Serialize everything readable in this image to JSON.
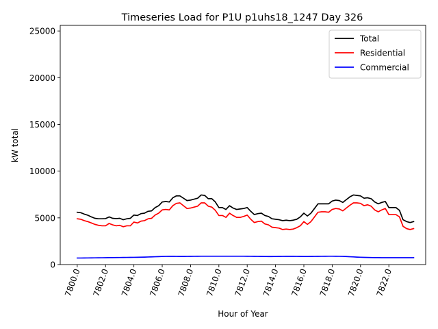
{
  "chart_data": {
    "type": "line",
    "title": "Timeseries Load for P1U p1uhs18_1247  Day 326",
    "xlabel": "Hour of Year",
    "ylabel": "kW total",
    "xlim": [
      7798.8,
      7824.6
    ],
    "ylim": [
      0,
      25600
    ],
    "xticks": [
      7800,
      7802,
      7804,
      7806,
      7808,
      7810,
      7812,
      7814,
      7816,
      7818,
      7820,
      7822
    ],
    "xtick_labels": [
      "7800.0",
      "7802.0",
      "7804.0",
      "7806.0",
      "7808.0",
      "7810.0",
      "7812.0",
      "7814.0",
      "7816.0",
      "7818.0",
      "7820.0",
      "7822.0"
    ],
    "yticks": [
      0,
      5000,
      10000,
      15000,
      20000,
      25000
    ],
    "ytick_labels": [
      "0",
      "5000",
      "10000",
      "15000",
      "20000",
      "25000"
    ],
    "grid": false,
    "legend_position": "top-right",
    "x": [
      7800.0,
      7800.25,
      7800.5,
      7800.75,
      7801.0,
      7801.25,
      7801.5,
      7801.75,
      7802.0,
      7802.25,
      7802.5,
      7802.75,
      7803.0,
      7803.25,
      7803.5,
      7803.75,
      7804.0,
      7804.25,
      7804.5,
      7804.75,
      7805.0,
      7805.25,
      7805.5,
      7805.75,
      7806.0,
      7806.25,
      7806.5,
      7806.75,
      7807.0,
      7807.25,
      7807.5,
      7807.75,
      7808.0,
      7808.25,
      7808.5,
      7808.75,
      7809.0,
      7809.25,
      7809.5,
      7809.75,
      7810.0,
      7810.25,
      7810.5,
      7810.75,
      7811.0,
      7811.25,
      7811.5,
      7811.75,
      7812.0,
      7812.25,
      7812.5,
      7812.75,
      7813.0,
      7813.25,
      7813.5,
      7813.75,
      7814.0,
      7814.25,
      7814.5,
      7814.75,
      7815.0,
      7815.25,
      7815.5,
      7815.75,
      7816.0,
      7816.25,
      7816.5,
      7816.75,
      7817.0,
      7817.25,
      7817.5,
      7817.75,
      7818.0,
      7818.25,
      7818.5,
      7818.75,
      7819.0,
      7819.25,
      7819.5,
      7819.75,
      7820.0,
      7820.25,
      7820.5,
      7820.75,
      7821.0,
      7821.25,
      7821.5,
      7821.75,
      7822.0,
      7822.25,
      7822.5,
      7822.75,
      7823.0,
      7823.25,
      7823.5,
      7823.75
    ],
    "series": [
      {
        "name": "Total",
        "color": "#000000",
        "values": [
          5600,
          5550,
          5400,
          5280,
          5100,
          4950,
          4900,
          4900,
          4920,
          5100,
          4950,
          4920,
          4950,
          4800,
          4900,
          4950,
          5300,
          5250,
          5450,
          5500,
          5700,
          5750,
          6100,
          6300,
          6700,
          6750,
          6700,
          7150,
          7350,
          7350,
          7100,
          6850,
          6900,
          7000,
          7100,
          7450,
          7400,
          7050,
          7050,
          6700,
          6100,
          6100,
          5900,
          6300,
          6050,
          5900,
          5950,
          6000,
          6100,
          5700,
          5350,
          5450,
          5500,
          5250,
          5150,
          4900,
          4850,
          4800,
          4700,
          4750,
          4700,
          4750,
          4850,
          5100,
          5500,
          5200,
          5500,
          6000,
          6500,
          6500,
          6500,
          6500,
          6800,
          6900,
          6850,
          6650,
          6950,
          7250,
          7450,
          7400,
          7350,
          7100,
          7150,
          7050,
          6700,
          6500,
          6650,
          6750,
          6100,
          6100,
          6100,
          5800,
          4800,
          4600,
          4500,
          4600
        ]
      },
      {
        "name": "Residential",
        "color": "#ff0000",
        "values": [
          4900,
          4850,
          4700,
          4600,
          4450,
          4300,
          4200,
          4150,
          4150,
          4400,
          4250,
          4150,
          4200,
          4050,
          4150,
          4150,
          4550,
          4450,
          4650,
          4700,
          4900,
          4950,
          5300,
          5500,
          5850,
          5900,
          5850,
          6300,
          6550,
          6600,
          6300,
          6000,
          6050,
          6150,
          6250,
          6600,
          6600,
          6250,
          6150,
          5800,
          5250,
          5250,
          5050,
          5500,
          5250,
          5050,
          5050,
          5150,
          5300,
          4850,
          4500,
          4600,
          4650,
          4350,
          4250,
          4000,
          3950,
          3900,
          3750,
          3800,
          3750,
          3800,
          3950,
          4150,
          4600,
          4300,
          4600,
          5100,
          5600,
          5650,
          5650,
          5600,
          5900,
          6000,
          5950,
          5750,
          6050,
          6350,
          6600,
          6600,
          6550,
          6300,
          6400,
          6250,
          5850,
          5650,
          5850,
          6000,
          5350,
          5350,
          5350,
          5100,
          4100,
          3850,
          3750,
          3850
        ]
      },
      {
        "name": "Commercial",
        "color": "#0000ff",
        "values": [
          700,
          700,
          705,
          710,
          715,
          720,
          725,
          730,
          735,
          740,
          745,
          750,
          755,
          760,
          765,
          770,
          775,
          780,
          790,
          800,
          810,
          825,
          840,
          855,
          865,
          875,
          880,
          880,
          875,
          870,
          870,
          875,
          880,
          885,
          890,
          895,
          895,
          895,
          895,
          895,
          895,
          895,
          895,
          895,
          895,
          895,
          895,
          895,
          890,
          885,
          880,
          875,
          870,
          865,
          860,
          860,
          865,
          870,
          875,
          880,
          880,
          880,
          875,
          870,
          865,
          865,
          870,
          875,
          880,
          885,
          890,
          895,
          895,
          890,
          885,
          875,
          860,
          840,
          820,
          800,
          785,
          770,
          760,
          750,
          745,
          740,
          735,
          735,
          735,
          735,
          735,
          735,
          735,
          735,
          735,
          735
        ]
      }
    ]
  }
}
